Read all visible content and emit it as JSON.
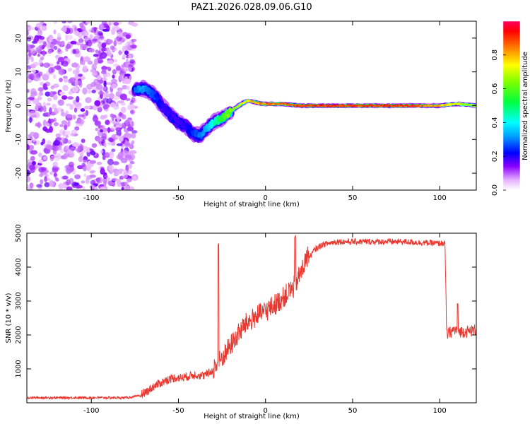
{
  "title": "PAZ1.2026.028.09.06.G10",
  "chart_data": [
    {
      "type": "heatmap",
      "name": "spectrogram",
      "xlabel": "Height of straight line (km)",
      "ylabel": "Frequency (Hz)",
      "xlim": [
        -137,
        121
      ],
      "ylim": [
        -25,
        25
      ],
      "xticks": [
        -100,
        -50,
        0,
        50,
        100
      ],
      "yticks": [
        -20,
        -10,
        0,
        10,
        20
      ],
      "noise_region_x": [
        -137,
        -75
      ],
      "ridge": {
        "x": [
          -75,
          -70,
          -66,
          -62,
          -58,
          -54,
          -50,
          -46,
          -42,
          -38,
          -34,
          -30,
          -26,
          -22,
          -18,
          -14,
          -10,
          -6,
          -2,
          2,
          6,
          10,
          14,
          20,
          30,
          40,
          50,
          60,
          70,
          80,
          90,
          100,
          105,
          110,
          115,
          121
        ],
        "y": [
          4.5,
          5.0,
          4.0,
          2.0,
          -1.0,
          -3.0,
          -5.0,
          -6.0,
          -8.0,
          -9.0,
          -7.0,
          -5.0,
          -4.0,
          -2.5,
          -1.0,
          0.5,
          1.5,
          1.0,
          0.5,
          0.5,
          0.5,
          0.5,
          0.3,
          0.0,
          0.0,
          0.0,
          0.0,
          0.0,
          0.0,
          0.0,
          0.0,
          0.0,
          0.3,
          0.5,
          0.3,
          0.0
        ],
        "amplitude": [
          0.3,
          0.35,
          0.3,
          0.25,
          0.2,
          0.2,
          0.2,
          0.2,
          0.25,
          0.3,
          0.35,
          0.45,
          0.55,
          0.65,
          0.7,
          0.75,
          0.8,
          0.85,
          0.9,
          0.9,
          0.9,
          0.9,
          0.9,
          0.95,
          0.95,
          0.95,
          0.95,
          0.95,
          0.95,
          0.95,
          0.9,
          0.85,
          0.8,
          0.75,
          0.7,
          0.7
        ]
      },
      "colorbar": {
        "label": "Normalized spectral amplitude",
        "ticks": [
          "0.0",
          "0.2",
          "0.4",
          "0.6",
          "0.8"
        ],
        "range": [
          0,
          1
        ]
      }
    },
    {
      "type": "line",
      "name": "snr",
      "xlabel": "Height of straight line (km)",
      "ylabel": "SNR (10 * v/v)",
      "xlim": [
        -137,
        121
      ],
      "ylim": [
        0,
        5000
      ],
      "xticks": [
        -100,
        -50,
        0,
        50,
        100
      ],
      "yticks": [
        1000,
        2000,
        3000,
        4000,
        5000
      ],
      "color": "#e8382f",
      "series": [
        {
          "name": "SNR",
          "x": [
            -137,
            -120,
            -100,
            -80,
            -72,
            -68,
            -64,
            -60,
            -56,
            -52,
            -48,
            -44,
            -40,
            -36,
            -32,
            -28,
            -24,
            -20,
            -16,
            -12,
            -8,
            -4,
            0,
            4,
            8,
            12,
            16,
            20,
            24,
            28,
            32,
            36,
            40,
            50,
            60,
            70,
            80,
            90,
            100,
            103,
            104,
            108,
            112,
            116,
            121
          ],
          "y": [
            150,
            150,
            150,
            150,
            200,
            300,
            450,
            550,
            650,
            700,
            700,
            750,
            800,
            750,
            850,
            1000,
            1300,
            1600,
            1900,
            2200,
            2350,
            2500,
            2600,
            2750,
            2900,
            3100,
            3300,
            3700,
            4200,
            4500,
            4650,
            4700,
            4750,
            4750,
            4750,
            4750,
            4750,
            4720,
            4700,
            4700,
            2000,
            2150,
            2100,
            2100,
            2150
          ]
        }
      ]
    }
  ]
}
